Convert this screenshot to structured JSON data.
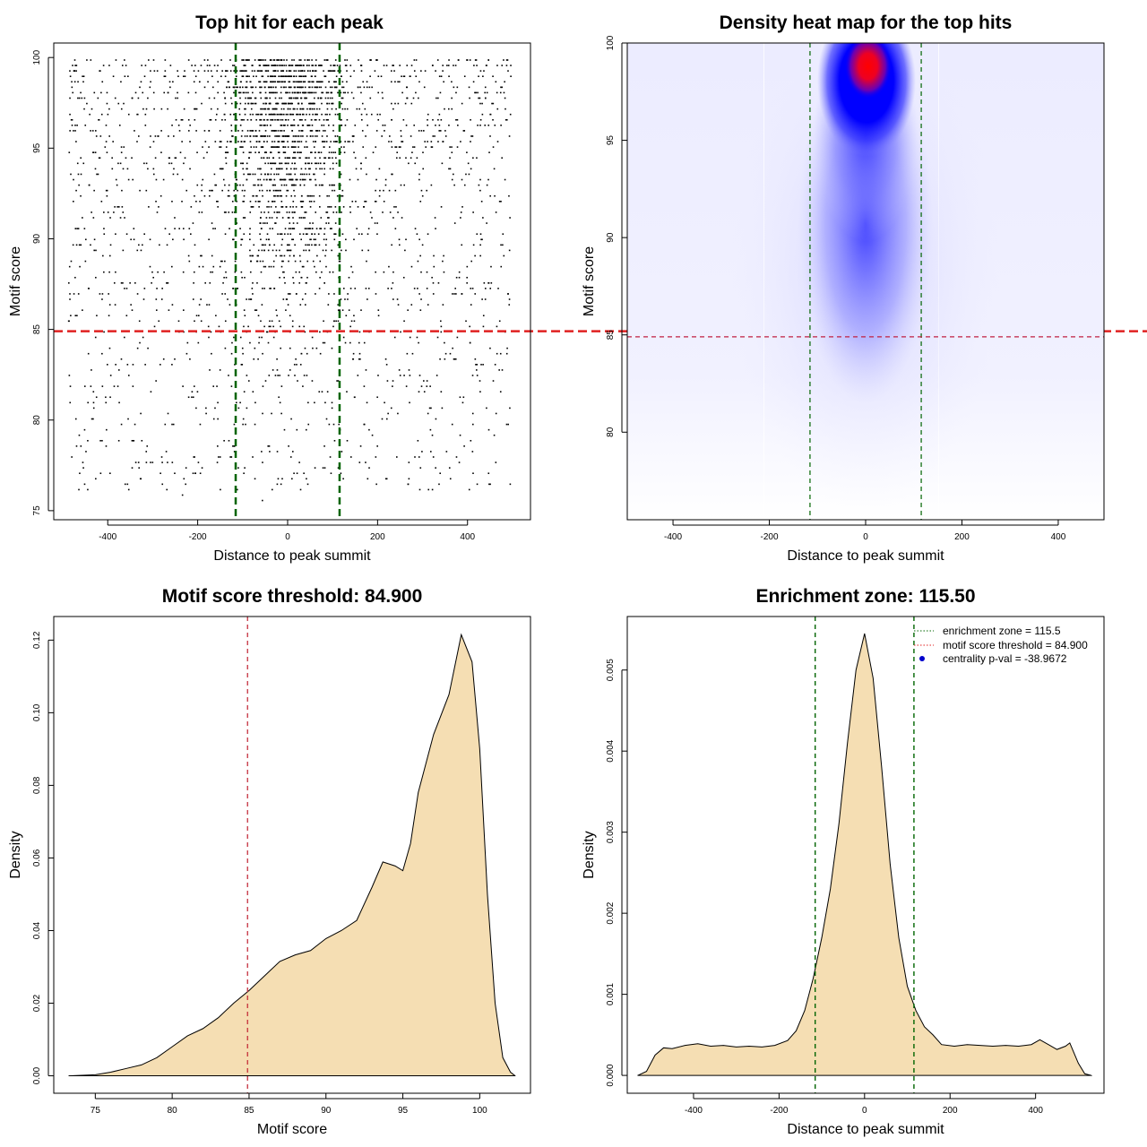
{
  "chart_data": [
    {
      "type": "scatter",
      "title": "Top hit for each peak",
      "xlabel": "Distance to peak summit",
      "ylabel": "Motif score",
      "xlim": [
        -520,
        540
      ],
      "ylim": [
        74.5,
        100.8
      ],
      "xticks": [
        -400,
        -200,
        0,
        200,
        400
      ],
      "yticks": [
        75,
        80,
        85,
        90,
        95,
        100
      ],
      "points_summary": "thousands of points, x from -490 to 495, densest near x=0 and high scores",
      "vlines": [
        {
          "x": -115.5,
          "color": "#006400",
          "style": "dashed"
        },
        {
          "x": 115.5,
          "color": "#006400",
          "style": "dashed"
        }
      ],
      "hlines": [
        {
          "y": 84.9,
          "color": "#e02020",
          "style": "dashed"
        }
      ]
    },
    {
      "type": "heatmap",
      "title": "Density heat map for the top hits",
      "xlabel": "Distance to peak summit",
      "ylabel": "Motif score",
      "xlim": [
        -495,
        495
      ],
      "ylim": [
        75.5,
        100
      ],
      "xticks": [
        -400,
        -200,
        0,
        200,
        400
      ],
      "yticks": [
        80,
        85,
        90,
        95,
        100
      ],
      "colors": [
        "#ffffff",
        "#0000ff",
        "#ff0000"
      ],
      "peak": {
        "x": 5,
        "y": 98.8
      },
      "vlines": [
        {
          "x": -115.5,
          "color": "#006400",
          "style": "dashed"
        },
        {
          "x": 115.5,
          "color": "#006400",
          "style": "dashed"
        }
      ],
      "hlines": [
        {
          "y": 84.9,
          "color": "#c02040",
          "style": "dashed"
        }
      ]
    },
    {
      "type": "area",
      "title": "Motif score threshold: 84.900",
      "xlabel": "Motif score",
      "ylabel": "Density",
      "xlim": [
        72.3,
        103.3
      ],
      "ylim": [
        -0.0048,
        0.1265
      ],
      "xticks": [
        75,
        80,
        85,
        90,
        95,
        100
      ],
      "yticks": [
        "0.00",
        "0.02",
        "0.04",
        "0.06",
        "0.08",
        "0.10",
        "0.12"
      ],
      "fill": "#f5deb3",
      "x": [
        73.3,
        75,
        76,
        77,
        78,
        79,
        80,
        81,
        82,
        83,
        84,
        85,
        86,
        87,
        88,
        89,
        90,
        91,
        92,
        93,
        93.7,
        94.5,
        95,
        95.5,
        96,
        97,
        98,
        98.8,
        99.5,
        100,
        100.5,
        101,
        101.5,
        102,
        102.3
      ],
      "y": [
        0.0,
        0.0003,
        0.001,
        0.002,
        0.003,
        0.005,
        0.008,
        0.011,
        0.013,
        0.016,
        0.02,
        0.0235,
        0.0275,
        0.0315,
        0.0333,
        0.0345,
        0.0378,
        0.04,
        0.0428,
        0.052,
        0.0589,
        0.0578,
        0.0565,
        0.064,
        0.078,
        0.094,
        0.105,
        0.1215,
        0.114,
        0.09,
        0.05,
        0.02,
        0.005,
        0.001,
        0.0
      ],
      "vlines": [
        {
          "x": 84.9,
          "color": "#c02030",
          "style": "dashed"
        }
      ]
    },
    {
      "type": "area",
      "title": "Enrichment zone: 115.50",
      "xlabel": "Distance to peak summit",
      "ylabel": "Density",
      "xlim": [
        -555,
        560
      ],
      "ylim": [
        -0.00022,
        0.00566
      ],
      "xticks": [
        -400,
        -200,
        0,
        200,
        400
      ],
      "yticks": [
        "0.000",
        "0.001",
        "0.002",
        "0.003",
        "0.004",
        "0.005"
      ],
      "fill": "#f5deb3",
      "x": [
        -530,
        -510,
        -490,
        -470,
        -450,
        -420,
        -390,
        -360,
        -330,
        -300,
        -270,
        -240,
        -210,
        -180,
        -160,
        -140,
        -120,
        -100,
        -80,
        -60,
        -40,
        -20,
        0,
        20,
        40,
        60,
        80,
        100,
        120,
        140,
        160,
        180,
        210,
        240,
        270,
        300,
        330,
        360,
        390,
        410,
        430,
        450,
        470,
        480,
        500,
        515,
        530
      ],
      "y": [
        0.0,
        5e-05,
        0.00025,
        0.00034,
        0.00033,
        0.00037,
        0.00039,
        0.00036,
        0.00037,
        0.00035,
        0.00036,
        0.00035,
        0.00037,
        0.00043,
        0.00055,
        0.0008,
        0.0012,
        0.0017,
        0.0023,
        0.0031,
        0.0041,
        0.005,
        0.00545,
        0.0049,
        0.0038,
        0.0026,
        0.0017,
        0.0011,
        0.0008,
        0.0006,
        0.0005,
        0.00038,
        0.00036,
        0.00038,
        0.00037,
        0.00036,
        0.00037,
        0.00036,
        0.00038,
        0.00044,
        0.00038,
        0.00032,
        0.00036,
        0.0004,
        0.00015,
        2e-05,
        0.0
      ],
      "vlines": [
        {
          "x": -115.5,
          "color": "#006400",
          "style": "dashed"
        },
        {
          "x": 115.5,
          "color": "#006400",
          "style": "dashed"
        }
      ],
      "legend": {
        "position": "top-right",
        "entries": [
          {
            "label": "enrichment zone = 115.5",
            "color": "#006400",
            "style": "dotted-line"
          },
          {
            "label": "motif score threshold = 84.900",
            "color": "#e02020",
            "style": "dotted-line"
          },
          {
            "label": "centrality p-val = -38.9672",
            "color": "#0000cc",
            "style": "dot"
          }
        ]
      }
    }
  ]
}
